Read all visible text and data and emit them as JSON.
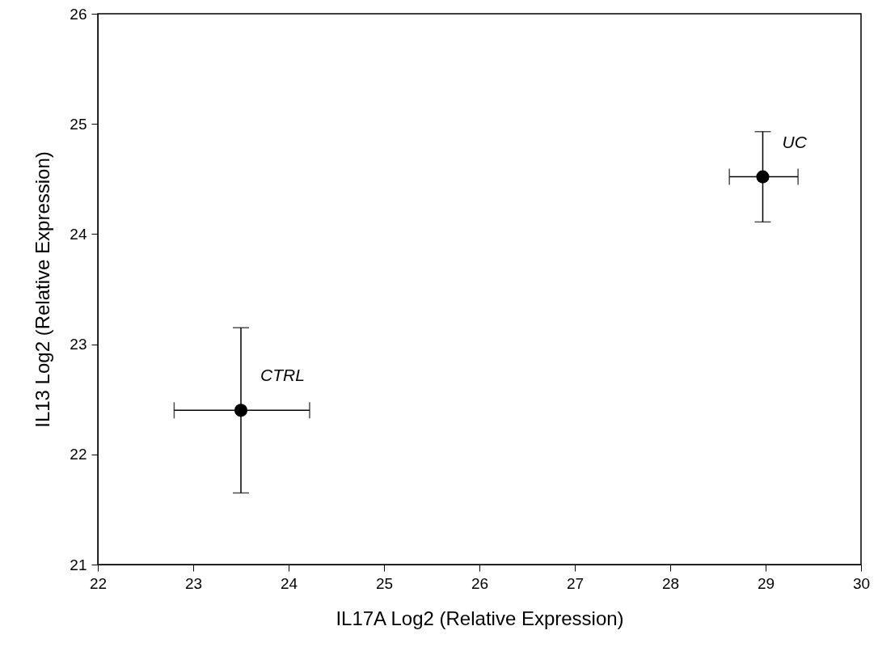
{
  "chart_data": {
    "type": "scatter",
    "xlabel": "IL17A Log2 (Relative Expression)",
    "ylabel": "IL13 Log2 (Relative Expression)",
    "x": [
      23.5,
      28.97
    ],
    "values": [
      22.4,
      24.52
    ],
    "errors": [
      [
        21.65,
        23.15
      ],
      [
        24.11,
        24.93
      ]
    ],
    "xerrors": [
      [
        22.8,
        24.22
      ],
      [
        28.62,
        29.34
      ]
    ],
    "color": "#000000",
    "marker": "circle",
    "xlim": [
      22,
      30
    ],
    "xticks": [
      22,
      23,
      24,
      25,
      26,
      27,
      28,
      29,
      30
    ],
    "ylim": [
      21,
      26
    ],
    "yticks": [
      21,
      22,
      23,
      24,
      25,
      26
    ],
    "grid": false,
    "annotations": [
      "CTRL",
      "UC"
    ]
  }
}
